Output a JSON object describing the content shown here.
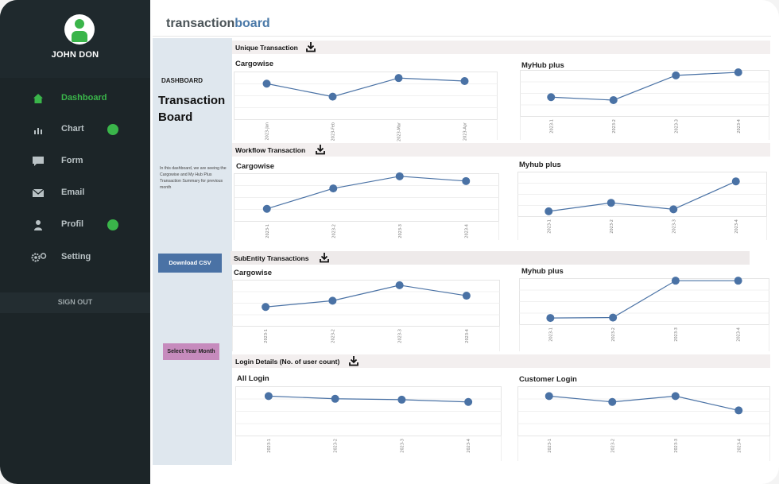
{
  "user": {
    "name": "JOHN DON"
  },
  "nav": [
    {
      "label": "Dashboard",
      "icon": "home-icon",
      "active": true,
      "dot": false
    },
    {
      "label": "Chart",
      "icon": "bar-chart-icon",
      "active": false,
      "dot": true
    },
    {
      "label": "Form",
      "icon": "form-icon",
      "active": false,
      "dot": false
    },
    {
      "label": "Email",
      "icon": "envelope-icon",
      "active": false,
      "dot": false
    },
    {
      "label": "Profil",
      "icon": "person-icon",
      "active": false,
      "dot": true
    },
    {
      "label": "Setting",
      "icon": "gear-icon",
      "active": false,
      "dot": false
    }
  ],
  "signout": "SIGN OUT",
  "brand": {
    "part1": "transaction",
    "part2": "board"
  },
  "panel": {
    "label": "DASHBOARD",
    "title": "Transaction Board",
    "description": "In this dashboard, we are seeing the Cargowise and My Hub Plus Transaction Summary for previous month",
    "csv_button": "Download CSV",
    "year_month_button": "Select Year Month"
  },
  "colors": {
    "accent": "#3ab54a",
    "line": "#4a72a5",
    "sidebar": "#1c2528",
    "panel": "#dfe7ee"
  },
  "sections": [
    {
      "title": "Unique Transaction",
      "icon": "download-icon"
    },
    {
      "title": "Workflow Transaction",
      "icon": "download-icon"
    },
    {
      "title": "SubEntity Transactions",
      "icon": "download-icon"
    },
    {
      "title": "Login Details (No. of user count)",
      "icon": "download-icon"
    }
  ],
  "chart_data": [
    {
      "type": "line",
      "title": "Cargowise",
      "categories": [
        "2023-Jan",
        "2023-Feb",
        "2023-Mar",
        "2023-Apr"
      ],
      "values": [
        0.82,
        0.52,
        0.95,
        0.88
      ]
    },
    {
      "type": "line",
      "title": "MyHub plus",
      "categories": [
        "2023-1",
        "2023-2",
        "2023-3",
        "2023-4"
      ],
      "values": [
        0.45,
        0.38,
        0.97,
        1.08
      ]
    },
    {
      "type": "line",
      "title": "Cargowise",
      "categories": [
        "2023-1",
        "2023-2",
        "2023-3",
        "2023-4"
      ],
      "values": [
        0.28,
        0.75,
        1.03,
        0.92
      ]
    },
    {
      "type": "line",
      "title": "Myhub plus",
      "categories": [
        "2023-1",
        "2023-2",
        "2023-3",
        "2023-4"
      ],
      "values": [
        0.12,
        0.33,
        0.17,
        0.86
      ]
    },
    {
      "type": "line",
      "title": "Cargowise",
      "categories": [
        "2023-1",
        "2023-2",
        "2023-3",
        "2023-4"
      ],
      "values": [
        0.45,
        0.6,
        0.97,
        0.72
      ]
    },
    {
      "type": "line",
      "title": "Myhub plus",
      "categories": [
        "2023-1",
        "2023-2",
        "2023-3",
        "2023-4"
      ],
      "values": [
        0.15,
        0.16,
        1.04,
        1.04
      ]
    },
    {
      "type": "line",
      "title": "All Login",
      "categories": [
        "2023-1",
        "2023-2",
        "2023-3",
        "2023-4"
      ],
      "values": [
        0.88,
        0.82,
        0.8,
        0.75
      ]
    },
    {
      "type": "line",
      "title": "Customer Login",
      "categories": [
        "2023-1",
        "2023-2",
        "2023-3",
        "2023-4"
      ],
      "values": [
        0.88,
        0.75,
        0.88,
        0.56
      ]
    }
  ]
}
